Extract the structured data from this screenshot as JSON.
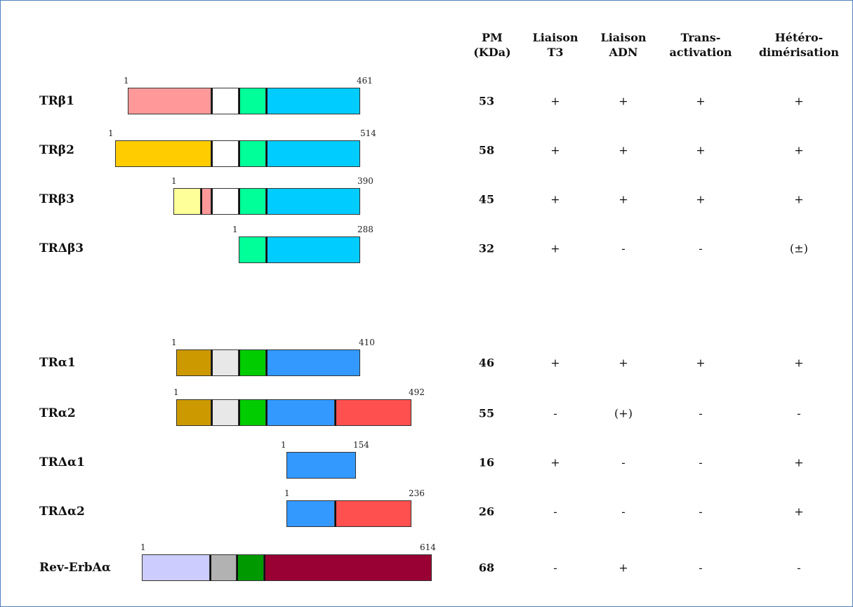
{
  "headers": [
    [
      "PM",
      "(KDa)"
    ],
    [
      "Liaison",
      "T3"
    ],
    [
      "Liaison",
      "ADN"
    ],
    [
      "Trans-",
      "activation"
    ],
    [
      "Hétéro-",
      "dimérisation"
    ]
  ],
  "domain_colors": {
    "pink": "#ff9999",
    "white": "#ffffff",
    "teal": "#00ff99",
    "cyan": "#00ccff",
    "gold": "#ffcc00",
    "lightyellow": "#ffff99",
    "brown": "#cc9900",
    "lightgray": "#e8e8e8",
    "green": "#00cc00",
    "blue": "#3399ff",
    "red": "#ff5050",
    "lavender": "#ccccff",
    "gray": "#b2b2b2",
    "darkgreen": "#009900",
    "maroon": "#990033"
  },
  "rows": [
    {
      "name": "TRβ1",
      "start": "1",
      "end": "461",
      "segments": [
        "pink",
        "white",
        "teal",
        "cyan"
      ],
      "values": [
        "53",
        "+",
        "+",
        "+",
        "+"
      ]
    },
    {
      "name": "TRβ2",
      "start": "1",
      "end": "514",
      "segments": [
        "gold",
        "white",
        "teal",
        "cyan"
      ],
      "values": [
        "58",
        "+",
        "+",
        "+",
        "+"
      ]
    },
    {
      "name": "TRβ3",
      "start": "1",
      "end": "390",
      "segments": [
        "lightyellow",
        "pink",
        "white",
        "teal",
        "cyan"
      ],
      "values": [
        "45",
        "+",
        "+",
        "+",
        "+"
      ]
    },
    {
      "name": "TRΔβ3",
      "start": "1",
      "end": "288",
      "segments": [
        "teal",
        "cyan"
      ],
      "values": [
        "32",
        "+",
        "-",
        "-",
        "(±)"
      ]
    },
    {
      "name": "TRα1",
      "start": "1",
      "end": "410",
      "segments": [
        "brown",
        "lightgray",
        "green",
        "blue"
      ],
      "values": [
        "46",
        "+",
        "+",
        "+",
        "+"
      ]
    },
    {
      "name": "TRα2",
      "start": "1",
      "end": "492",
      "segments": [
        "brown",
        "lightgray",
        "green",
        "blue",
        "red"
      ],
      "values": [
        "55",
        "-",
        "(+)",
        "-",
        "-"
      ]
    },
    {
      "name": "TRΔα1",
      "start": "1",
      "end": "154",
      "segments": [
        "blue"
      ],
      "values": [
        "16",
        "+",
        "-",
        "-",
        "+"
      ]
    },
    {
      "name": "TRΔα2",
      "start": "1",
      "end": "236",
      "segments": [
        "blue",
        "red"
      ],
      "values": [
        "26",
        "-",
        "-",
        "-",
        "+"
      ]
    },
    {
      "name": "Rev-ErbAα",
      "start": "1",
      "end": "614",
      "segments": [
        "lavender",
        "gray",
        "darkgreen",
        "maroon"
      ],
      "values": [
        "68",
        "-",
        "+",
        "-",
        "-"
      ]
    }
  ]
}
